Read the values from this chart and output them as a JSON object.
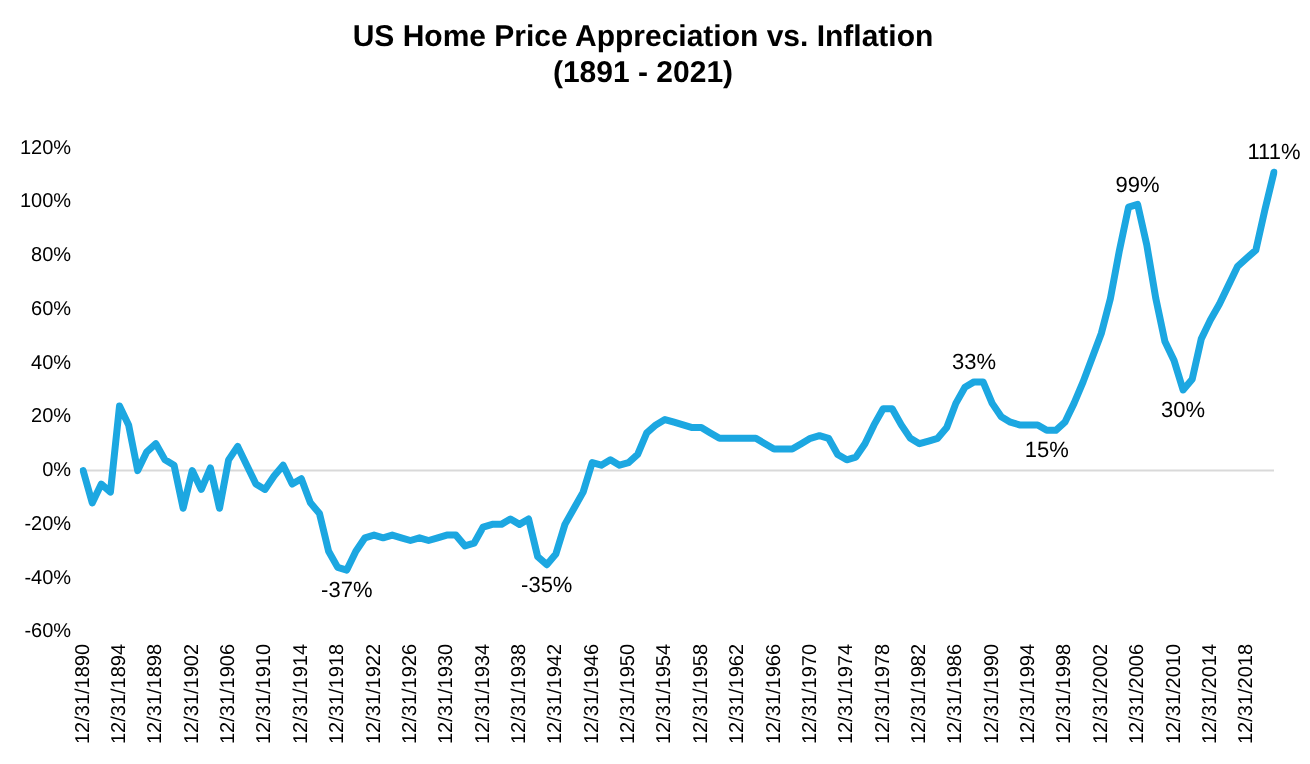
{
  "chart_data": {
    "type": "line",
    "title": "US Home Price Appreciation vs. Inflation\n(1891 - 2021)",
    "categories": [
      "12/31/1890",
      null,
      null,
      null,
      "12/31/1894",
      null,
      null,
      null,
      "12/31/1898",
      null,
      null,
      null,
      "12/31/1902",
      null,
      null,
      null,
      "12/31/1906",
      null,
      null,
      null,
      "12/31/1910",
      null,
      null,
      null,
      "12/31/1914",
      null,
      null,
      null,
      "12/31/1918",
      null,
      null,
      null,
      "12/31/1922",
      null,
      null,
      null,
      "12/31/1926",
      null,
      null,
      null,
      "12/31/1930",
      null,
      null,
      null,
      "12/31/1934",
      null,
      null,
      null,
      "12/31/1938",
      null,
      null,
      null,
      "12/31/1942",
      null,
      null,
      null,
      "12/31/1946",
      null,
      null,
      null,
      "12/31/1950",
      null,
      null,
      null,
      "12/31/1954",
      null,
      null,
      null,
      "12/31/1958",
      null,
      null,
      null,
      "12/31/1962",
      null,
      null,
      null,
      "12/31/1966",
      null,
      null,
      null,
      "12/31/1970",
      null,
      null,
      null,
      "12/31/1974",
      null,
      null,
      null,
      "12/31/1978",
      null,
      null,
      null,
      "12/31/1982",
      null,
      null,
      null,
      "12/31/1986",
      null,
      null,
      null,
      "12/31/1990",
      null,
      null,
      null,
      "12/31/1994",
      null,
      null,
      null,
      "12/31/1998",
      null,
      null,
      null,
      "12/31/2002",
      null,
      null,
      null,
      "12/31/2006",
      null,
      null,
      null,
      "12/31/2010",
      null,
      null,
      null,
      "12/31/2014",
      null,
      null,
      null,
      "12/31/2018",
      null,
      null,
      null
    ],
    "series": [
      {
        "color": "#1ca7e1",
        "values": [
          0,
          -12,
          -5,
          -8,
          24,
          17,
          0,
          7,
          10,
          4,
          2,
          -14,
          0,
          -7,
          1,
          -14,
          4,
          9,
          2,
          -5,
          -7,
          -2,
          2,
          -5,
          -3,
          -12,
          -16,
          -30,
          -36,
          -37,
          -30,
          -25,
          -24,
          -25,
          -24,
          -25,
          -26,
          -25,
          -26,
          -25,
          -24,
          -24,
          -28,
          -27,
          -21,
          -20,
          -20,
          -18,
          -20,
          -18,
          -32,
          -35,
          -31,
          -20,
          -14,
          -8,
          3,
          2,
          4,
          2,
          3,
          6,
          14,
          17,
          19,
          18,
          17,
          16,
          16,
          14,
          12,
          12,
          12,
          12,
          12,
          10,
          8,
          8,
          8,
          10,
          12,
          13,
          12,
          6,
          4,
          5,
          10,
          17,
          23,
          23,
          17,
          12,
          10,
          11,
          12,
          16,
          25,
          31,
          33,
          33,
          25,
          20,
          18,
          17,
          17,
          17,
          15,
          15,
          18,
          25,
          33,
          42,
          51,
          64,
          82,
          98,
          99,
          84,
          64,
          48,
          41,
          30,
          34,
          49,
          56,
          62,
          69,
          76,
          79,
          82,
          97,
          111
        ]
      }
    ],
    "ylim": [
      -60,
      120
    ],
    "yticks": [
      {
        "value": -60,
        "label": "-60%"
      },
      {
        "value": -40,
        "label": "-40%"
      },
      {
        "value": -20,
        "label": "-20%"
      },
      {
        "value": 0,
        "label": "0%"
      },
      {
        "value": 20,
        "label": "20%"
      },
      {
        "value": 40,
        "label": "40%"
      },
      {
        "value": 60,
        "label": "60%"
      },
      {
        "value": 80,
        "label": "80%"
      },
      {
        "value": 100,
        "label": "100%"
      },
      {
        "value": 120,
        "label": "120%"
      }
    ],
    "ref_lines": [
      {
        "axis": "y",
        "value": 0,
        "color": "#d9d9d9"
      }
    ],
    "annotations": [
      {
        "text": "-37%",
        "y": -37
      },
      {
        "text": "-35%",
        "y": -35
      },
      {
        "text": "33%",
        "y": 33
      },
      {
        "text": "15%",
        "y": 15
      },
      {
        "text": "99%",
        "y": 99
      },
      {
        "text": "30%",
        "y": 30
      },
      {
        "text": "111%",
        "y": 111
      }
    ],
    "grid": false,
    "legend": false,
    "marker": "none",
    "line_style": "solid"
  }
}
